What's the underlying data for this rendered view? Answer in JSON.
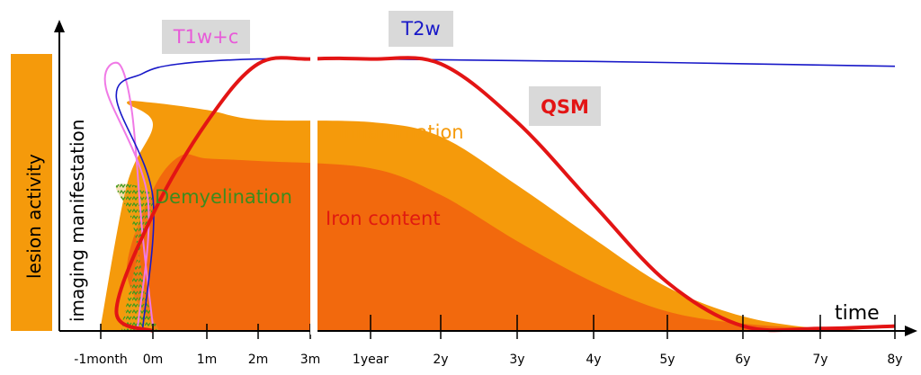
{
  "chart_data": {
    "type": "area",
    "xlabel": "time",
    "side_labels": {
      "activity_bar": "lesion activity",
      "y_axis": "imaging manifestation"
    },
    "x_ticks": [
      "-1month",
      "0m",
      "1m",
      "2m",
      "3m",
      "1year",
      "2y",
      "3y",
      "4y",
      "5y",
      "6y",
      "7y",
      "8y"
    ],
    "series": [
      {
        "name": "Inflammation",
        "kind": "area",
        "color": "#f59a0b",
        "points": [
          [
            -1,
            0.02
          ],
          [
            -0.5,
            0.6
          ],
          [
            0,
            0.85
          ],
          [
            0.5,
            0.94
          ],
          [
            1,
            0.94
          ],
          [
            2,
            0.91
          ],
          [
            3,
            0.87
          ],
          [
            5,
            0.86
          ],
          [
            6,
            0.8
          ],
          [
            7,
            0.6
          ],
          [
            8,
            0.38
          ],
          [
            9,
            0.18
          ],
          [
            10,
            0.06
          ],
          [
            11,
            0.01
          ],
          [
            12,
            0
          ]
        ]
      },
      {
        "name": "Iron content",
        "kind": "area",
        "color": "#f2690d",
        "points": [
          [
            0,
            0.02
          ],
          [
            0.5,
            0.25
          ],
          [
            1,
            0.58
          ],
          [
            1.5,
            0.72
          ],
          [
            2,
            0.71
          ],
          [
            3,
            0.7
          ],
          [
            5,
            0.67
          ],
          [
            6,
            0.56
          ],
          [
            7,
            0.37
          ],
          [
            8,
            0.2
          ],
          [
            9,
            0.08
          ],
          [
            10,
            0.03
          ],
          [
            11,
            0.01
          ],
          [
            12,
            0
          ]
        ]
      },
      {
        "name": "Demyelination",
        "kind": "hatched-area",
        "color": "#3c9c1e",
        "points": [
          [
            -0.6,
            0.02
          ],
          [
            -0.3,
            0.3
          ],
          [
            0,
            0.55
          ],
          [
            0.3,
            0.6
          ],
          [
            0.6,
            0.45
          ],
          [
            0.9,
            0.12
          ],
          [
            1.1,
            0.01
          ]
        ]
      },
      {
        "name": "T1w+c",
        "kind": "line",
        "color": "#f07ae6",
        "points": [
          [
            -0.3,
            0
          ],
          [
            -0.1,
            0.55
          ],
          [
            0.1,
            1.0
          ],
          [
            0.35,
            1.1
          ],
          [
            0.6,
            0.9
          ],
          [
            0.8,
            0.4
          ],
          [
            1.0,
            0.02
          ]
        ]
      },
      {
        "name": "T2w",
        "kind": "line",
        "color": "#1818c8",
        "points": [
          [
            -0.2,
            0
          ],
          [
            0,
            0.55
          ],
          [
            0.3,
            0.96
          ],
          [
            0.8,
            1.06
          ],
          [
            1.5,
            1.1
          ],
          [
            3,
            1.12
          ],
          [
            5,
            1.12
          ],
          [
            8,
            1.11
          ],
          [
            12,
            1.09
          ]
        ]
      },
      {
        "name": "QSM",
        "kind": "line",
        "color": "#e31414",
        "points": [
          [
            0,
            0
          ],
          [
            0.3,
            0.08
          ],
          [
            1,
            0.48
          ],
          [
            2,
            0.86
          ],
          [
            3,
            1.1
          ],
          [
            4,
            1.12
          ],
          [
            5,
            1.12
          ],
          [
            6,
            1.1
          ],
          [
            7,
            0.86
          ],
          [
            8,
            0.52
          ],
          [
            9,
            0.2
          ],
          [
            10,
            0.02
          ],
          [
            11,
            0.01
          ],
          [
            12,
            0.02
          ]
        ]
      }
    ],
    "annotations": [
      "T1w+c",
      "T2w",
      "QSM",
      "Inflammation",
      "Demyelination",
      "Iron content"
    ],
    "axis_break_at": "3m"
  }
}
